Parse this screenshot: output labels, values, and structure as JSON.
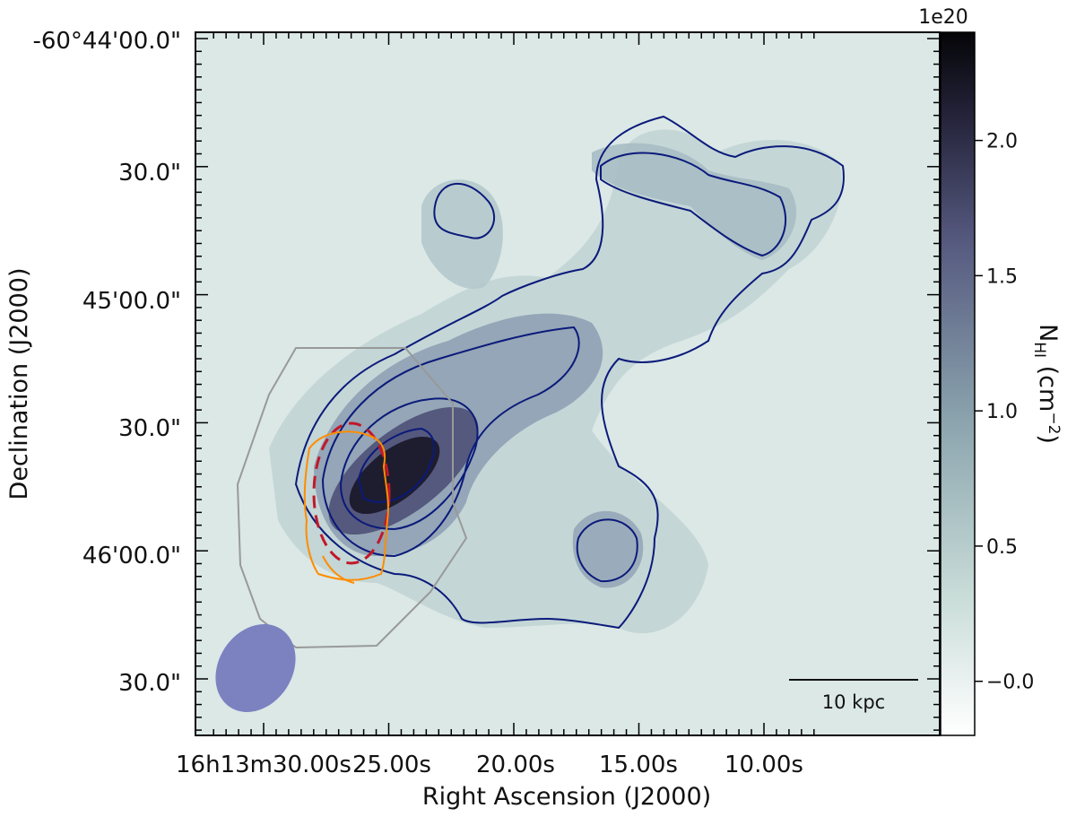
{
  "chart_data": {
    "type": "heatmap",
    "xlabel": "Right Ascension (J2000)",
    "ylabel": "Declination (J2000)",
    "x_ticks": [
      {
        "label": "16h13m30.00s",
        "ra_s": 30
      },
      {
        "label": "25.00s",
        "ra_s": 25
      },
      {
        "label": "20.00s",
        "ra_s": 20
      },
      {
        "label": "15.00s",
        "ra_s": 15
      },
      {
        "label": "10.00s",
        "ra_s": 10
      }
    ],
    "y_ticks": [
      {
        "label": "-60°44'00.0\"",
        "dec_offset_arcsec": 0
      },
      {
        "label": "30.0\"",
        "dec_offset_arcsec": 30
      },
      {
        "label": "45'00.0\"",
        "dec_offset_arcsec": 60
      },
      {
        "label": "30.0\"",
        "dec_offset_arcsec": 90
      },
      {
        "label": "46'00.0\"",
        "dec_offset_arcsec": 120
      },
      {
        "label": "30.0\"",
        "dec_offset_arcsec": 150
      }
    ],
    "colorbar": {
      "label_main": "N",
      "label_sub": "HI",
      "label_unit": " (cm",
      "label_exp": "−2",
      "label_close": ")",
      "offset_text": "1e20",
      "range": [
        -0.2,
        2.4
      ],
      "ticks": [
        "−0.0",
        "0.5",
        "1.0",
        "1.5",
        "2.0"
      ],
      "tick_values": [
        0,
        0.5,
        1.0,
        1.5,
        2.0
      ],
      "cmap": [
        "#ffffff",
        "#a9c6c4",
        "#6c7f95",
        "#3f3f66",
        "#050508"
      ]
    },
    "contours": {
      "color": "#0b1a7a",
      "levels": 4
    },
    "annotations": {
      "scale_bar": "10 kpc",
      "beam_color": "#7c82c0",
      "optical_contour_color": "#ff8c00",
      "dashed_ellipse_color": "#c0182a",
      "footprint_color": "#999999"
    },
    "peak": {
      "ra_s": 25.5,
      "dec_offset_arcsec": 103,
      "value": 2.3
    }
  }
}
